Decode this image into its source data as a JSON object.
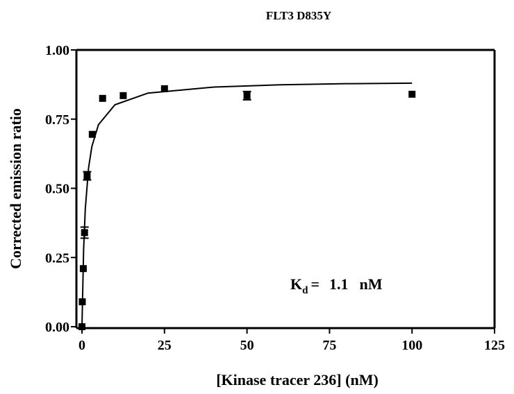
{
  "chart_data": {
    "type": "scatter",
    "title": "FLT3 D835Y",
    "x_label": "[Kinase tracer 236] (nM)",
    "y_label": "Corrected emission ratio",
    "xlim": [
      0,
      125
    ],
    "ylim": [
      0,
      1
    ],
    "xticks": [
      0,
      25,
      50,
      75,
      100,
      125
    ],
    "yticks": [
      {
        "value": 0,
        "label": "0.00"
      },
      {
        "value": 0.25,
        "label": "0.25"
      },
      {
        "value": 0.5,
        "label": "0.50"
      },
      {
        "value": 0.75,
        "label": "0.75"
      },
      {
        "value": 1,
        "label": "1.00"
      }
    ],
    "color": "#000000",
    "x": [
      0,
      0.1,
      0.4,
      0.78,
      1.56,
      3.125,
      6.25,
      12.5,
      25,
      50,
      100
    ],
    "values": [
      0.0,
      0.09,
      0.21,
      0.34,
      0.545,
      0.695,
      0.825,
      0.835,
      0.86,
      0.835,
      0.84
    ],
    "errors": [
      0,
      0,
      0,
      0.02,
      0.015,
      0,
      0,
      0,
      0,
      0.015,
      0
    ],
    "fit": {
      "x": [
        0,
        0.5,
        1,
        2,
        3,
        5,
        10,
        20,
        40,
        60,
        80,
        100
      ],
      "values": [
        0,
        0.278,
        0.424,
        0.574,
        0.651,
        0.73,
        0.802,
        0.844,
        0.866,
        0.874,
        0.878,
        0.88
      ]
    },
    "annotation": {
      "symbol": "K",
      "subscript": "d",
      "equals": "=",
      "value": "1.1",
      "unit": "nM"
    }
  }
}
